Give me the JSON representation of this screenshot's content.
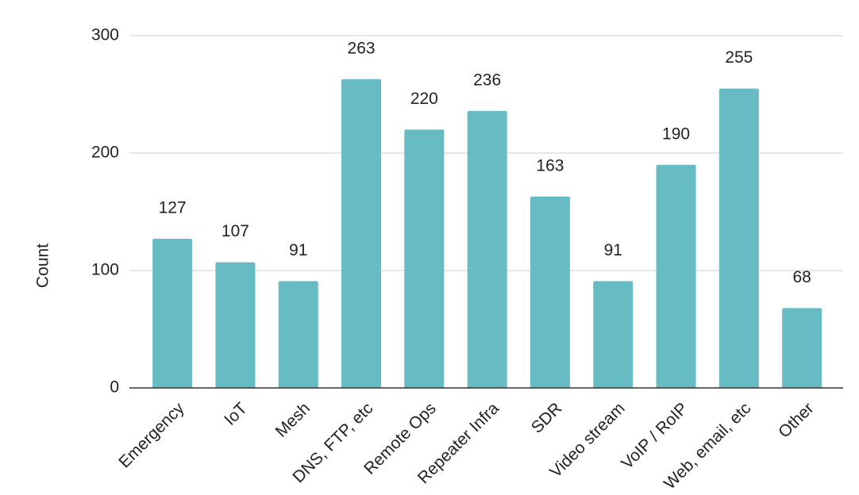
{
  "chart_data": {
    "type": "bar",
    "y_label": "Count",
    "categories": [
      "Emergency",
      "IoT",
      "Mesh",
      "DNS, FTP, etc",
      "Remote Ops",
      "Repeater Infra",
      "SDR",
      "Video stream",
      "VoIP / RoIP",
      "Web, email, etc",
      "Other"
    ],
    "values": [
      127,
      107,
      91,
      263,
      220,
      236,
      163,
      91,
      190,
      255,
      68
    ],
    "color": "#67bcc4",
    "ylim": [
      0,
      300
    ],
    "yticks": [
      0,
      100,
      200,
      300
    ],
    "grid": true
  }
}
